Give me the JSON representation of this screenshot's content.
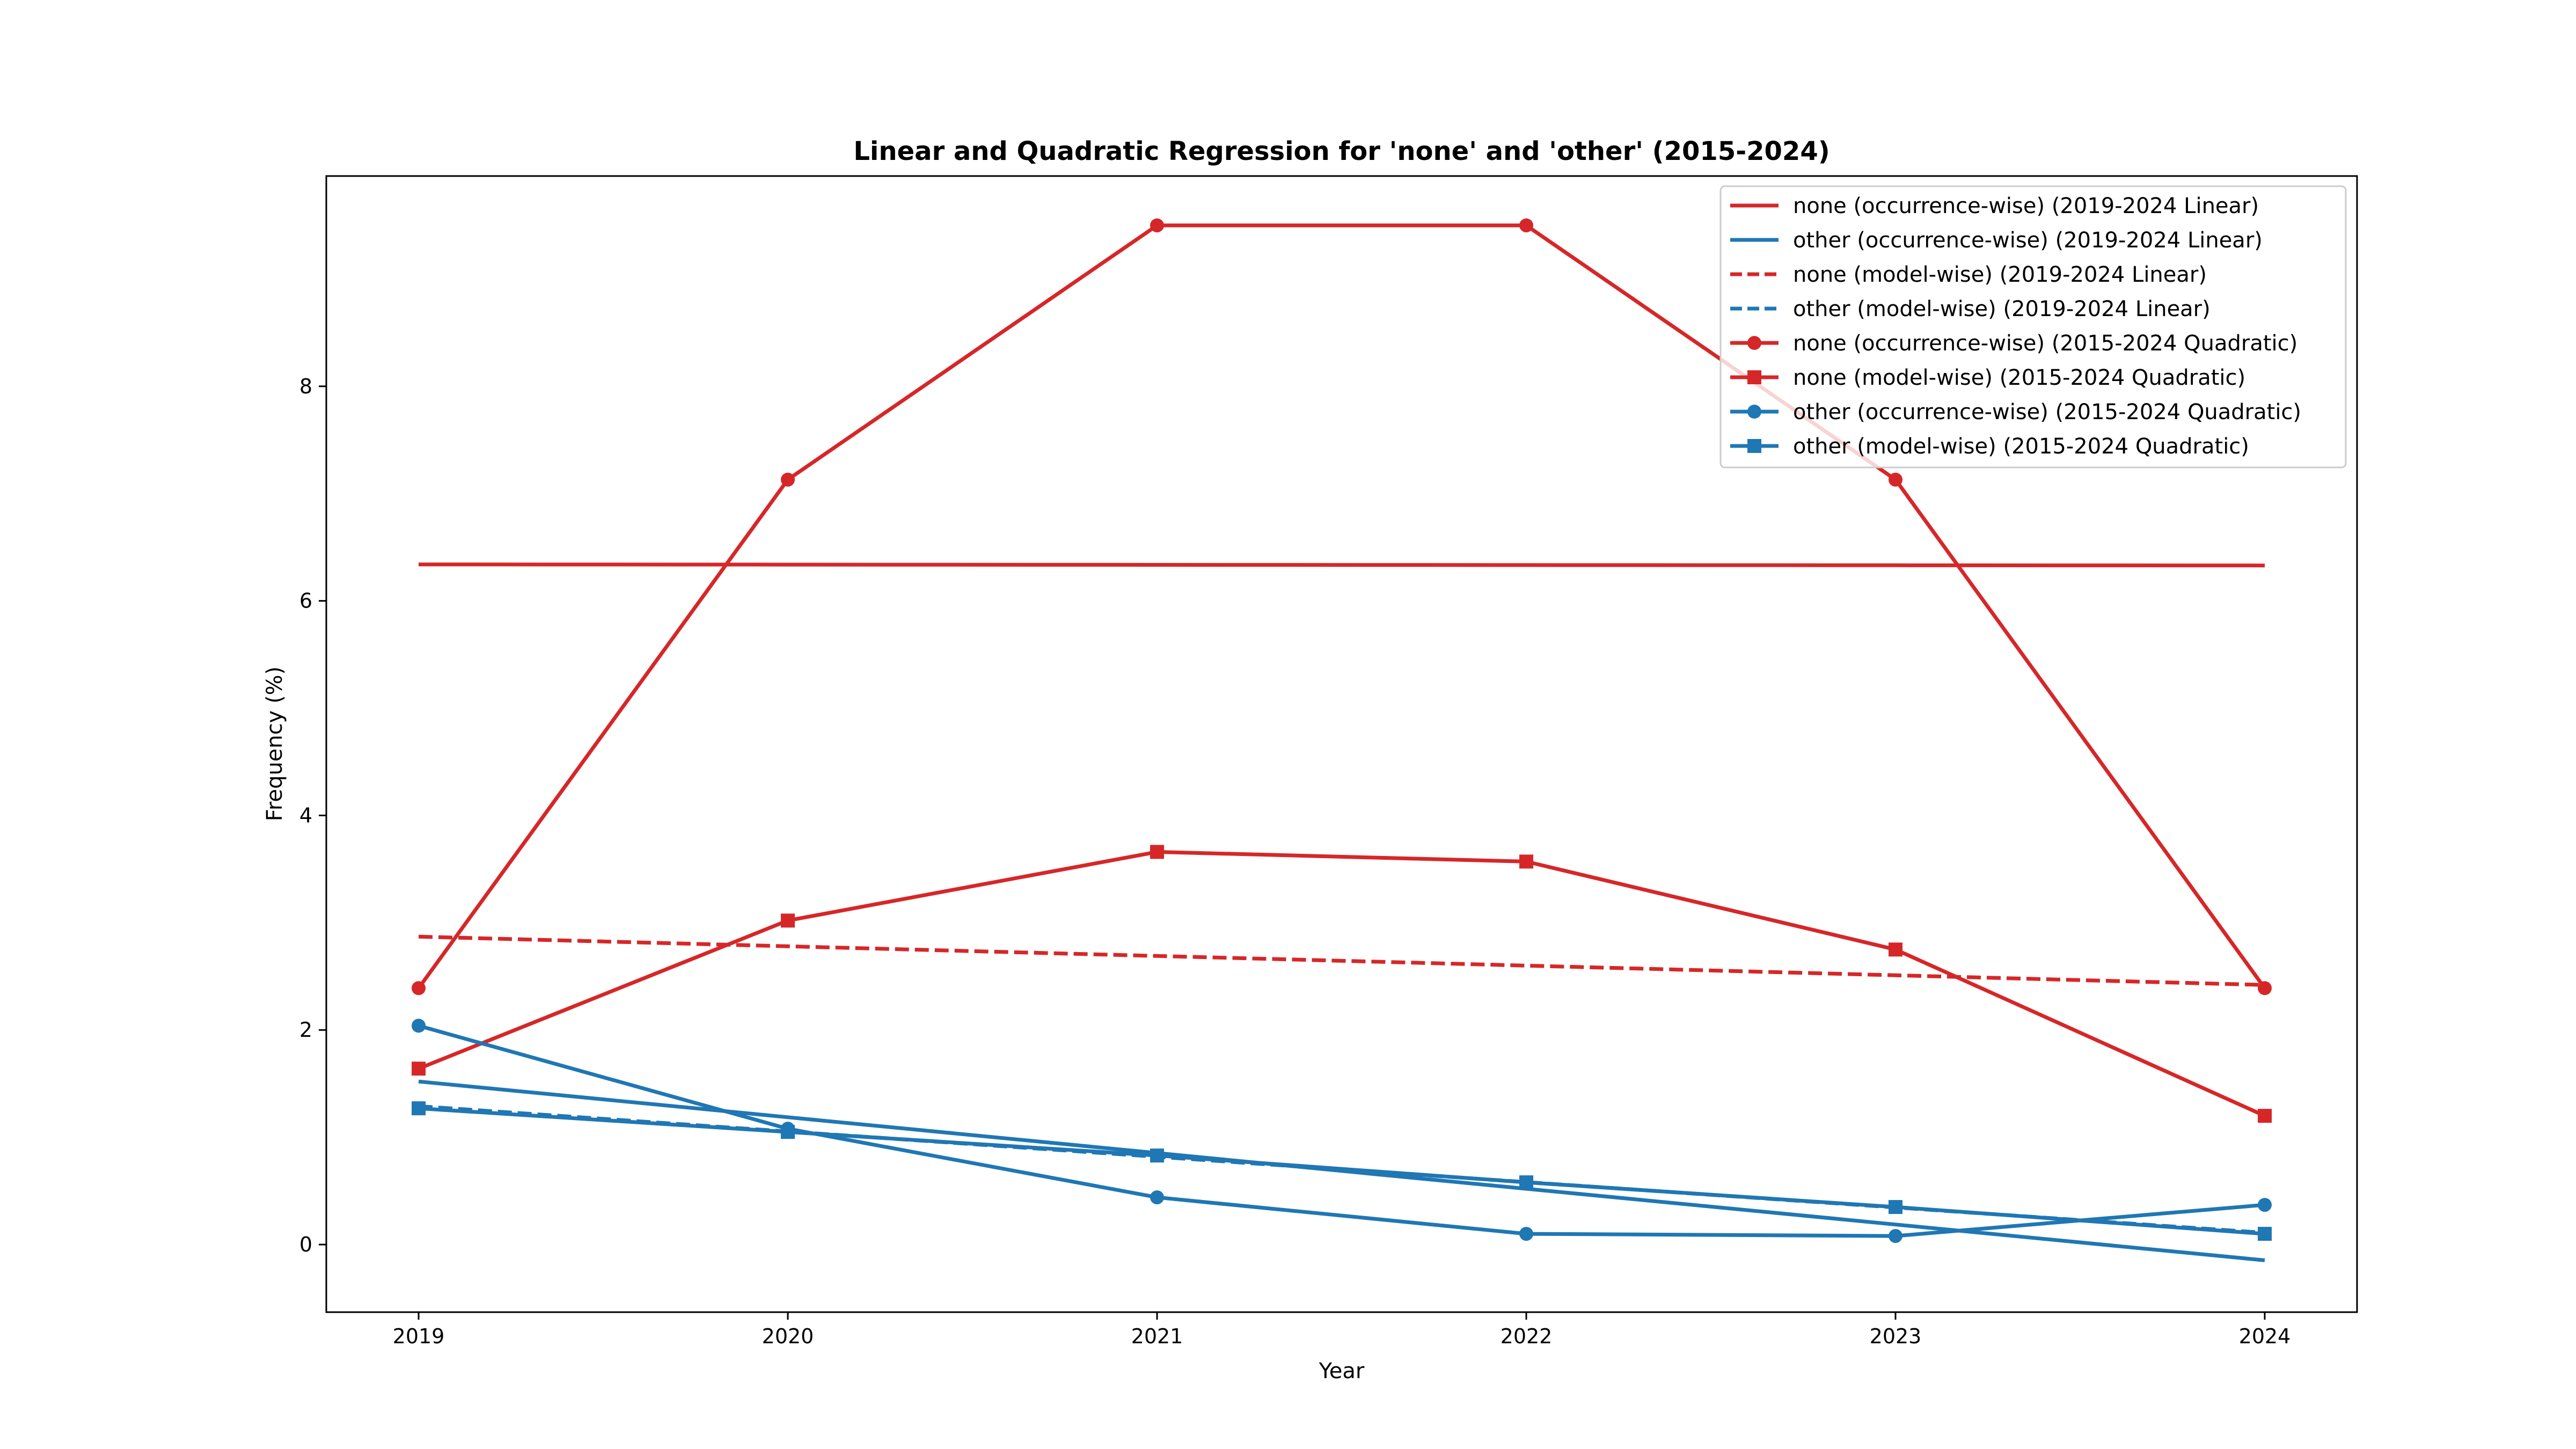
{
  "chart_data": {
    "type": "line",
    "title": "Linear and Quadratic Regression for 'none' and 'other' (2015-2024)",
    "xlabel": "Year",
    "ylabel": "Frequency (%)",
    "x": [
      2019,
      2020,
      2021,
      2022,
      2023,
      2024
    ],
    "xlim": [
      2018.75,
      2024.25
    ],
    "ylim": [
      -0.63,
      9.96
    ],
    "yticks": [
      0,
      2,
      4,
      6,
      8
    ],
    "grid": false,
    "legend_position": "top-right",
    "colors": {
      "none": "#d62728",
      "other": "#1f77b4"
    },
    "series": [
      {
        "name": "none (occurrence-wise) (2019-2024 Linear)",
        "color": "#d62728",
        "dash": "solid",
        "marker": "none",
        "values": [
          6.34,
          6.338,
          6.336,
          6.334,
          6.332,
          6.33
        ]
      },
      {
        "name": "other (occurrence-wise) (2019-2024 Linear)",
        "color": "#1f77b4",
        "dash": "solid",
        "marker": "none",
        "values": [
          1.52,
          1.187,
          0.853,
          0.52,
          0.187,
          -0.147
        ]
      },
      {
        "name": "none (model-wise) (2019-2024 Linear)",
        "color": "#d62728",
        "dash": "dashed",
        "marker": "none",
        "values": [
          2.87,
          2.78,
          2.69,
          2.6,
          2.51,
          2.42
        ]
      },
      {
        "name": "other (model-wise) (2019-2024 Linear)",
        "color": "#1f77b4",
        "dash": "dashed",
        "marker": "none",
        "values": [
          1.29,
          1.054,
          0.818,
          0.582,
          0.346,
          0.11
        ]
      },
      {
        "name": "none (occurrence-wise) (2015-2024 Quadratic)",
        "color": "#d62728",
        "dash": "solid",
        "marker": "circle",
        "values": [
          2.39,
          7.13,
          9.5,
          9.5,
          7.13,
          2.39
        ]
      },
      {
        "name": "none (model-wise) (2015-2024 Quadratic)",
        "color": "#d62728",
        "dash": "solid",
        "marker": "square",
        "values": [
          1.64,
          3.02,
          3.66,
          3.57,
          2.75,
          1.2
        ]
      },
      {
        "name": "other (occurrence-wise) (2015-2024 Quadratic)",
        "color": "#1f77b4",
        "dash": "solid",
        "marker": "circle",
        "values": [
          2.04,
          1.08,
          0.44,
          0.1,
          0.08,
          0.37
        ]
      },
      {
        "name": "other (model-wise) (2015-2024 Quadratic)",
        "color": "#1f77b4",
        "dash": "solid",
        "marker": "square",
        "values": [
          1.27,
          1.05,
          0.83,
          0.58,
          0.35,
          0.1
        ]
      }
    ]
  }
}
